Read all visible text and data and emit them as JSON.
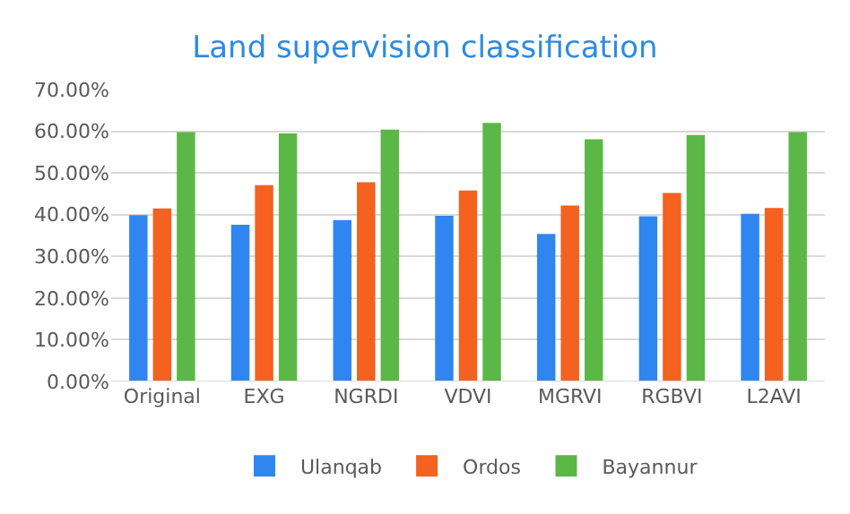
{
  "chart_data": {
    "type": "bar",
    "title": "Land supervision classification",
    "categories": [
      "Original",
      "EXG",
      "NGRDI",
      "VDVI",
      "MGRVI",
      "RGBVI",
      "L2AVI"
    ],
    "series": [
      {
        "name": "Ulanqab",
        "color": "#2f86f0",
        "values": [
          39.9,
          37.6,
          38.7,
          39.7,
          35.4,
          39.6,
          40.2
        ]
      },
      {
        "name": "Ordos",
        "color": "#f5611f",
        "values": [
          41.5,
          47.1,
          47.8,
          45.8,
          42.2,
          45.2,
          41.6
        ]
      },
      {
        "name": "Bayannur",
        "color": "#5cb846",
        "values": [
          59.8,
          59.5,
          60.4,
          62.0,
          58.1,
          59.1,
          59.8
        ]
      }
    ],
    "ylim": [
      0,
      70
    ],
    "yticks": [
      {
        "value": 0,
        "label": "0.00%"
      },
      {
        "value": 10,
        "label": "10.00%"
      },
      {
        "value": 20,
        "label": "20.00%"
      },
      {
        "value": 30,
        "label": "30.00%"
      },
      {
        "value": 40,
        "label": "40.00%"
      },
      {
        "value": 50,
        "label": "50.00%"
      },
      {
        "value": 60,
        "label": "60.00%"
      },
      {
        "value": 70,
        "label": "70.00%"
      }
    ],
    "grid": "y",
    "legend": "bottom"
  }
}
